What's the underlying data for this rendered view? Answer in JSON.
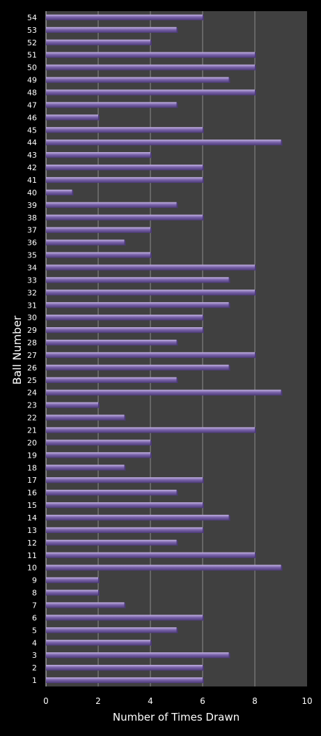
{
  "chart_data": {
    "type": "bar",
    "orientation": "horizontal",
    "title": "",
    "xlabel": "Number of Times Drawn",
    "ylabel": "Ball Number",
    "xlim": [
      0,
      10
    ],
    "xticks": [
      "0",
      "2",
      "4",
      "6",
      "8",
      "10"
    ],
    "grid": "vertical",
    "colors": {
      "background": "#000000",
      "plot_area": "#404040",
      "grid": "#8c8c8c",
      "bar_top": "#c3b2e3",
      "bar_mid": "#7a64aa",
      "bar_bottom": "#4c3a78",
      "text": "#ffffff"
    },
    "categories": [
      "1",
      "2",
      "3",
      "4",
      "5",
      "6",
      "7",
      "8",
      "9",
      "10",
      "11",
      "12",
      "13",
      "14",
      "15",
      "16",
      "17",
      "18",
      "19",
      "20",
      "21",
      "22",
      "23",
      "24",
      "25",
      "26",
      "27",
      "28",
      "29",
      "30",
      "31",
      "32",
      "33",
      "34",
      "35",
      "36",
      "37",
      "38",
      "39",
      "40",
      "41",
      "42",
      "43",
      "44",
      "45",
      "46",
      "47",
      "48",
      "49",
      "50",
      "51",
      "52",
      "53",
      "54"
    ],
    "values": [
      6,
      6,
      7,
      4,
      5,
      6,
      3,
      2,
      2,
      9,
      8,
      5,
      6,
      7,
      6,
      5,
      6,
      3,
      4,
      4,
      8,
      3,
      2,
      9,
      5,
      7,
      8,
      5,
      6,
      6,
      7,
      8,
      7,
      8,
      4,
      3,
      4,
      6,
      5,
      1,
      6,
      6,
      4,
      9,
      6,
      2,
      5,
      8,
      7,
      8,
      8,
      4,
      5,
      6
    ]
  }
}
